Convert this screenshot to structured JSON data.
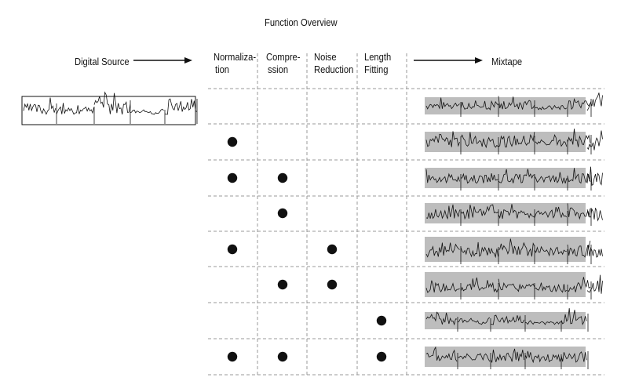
{
  "title": "Function Overview",
  "source_label": "Digital Source",
  "output_label": "Mixtape",
  "columns": [
    {
      "key": "normalization",
      "line1": "Normaliza-",
      "line2": "tion"
    },
    {
      "key": "compression",
      "line1": "Compre-",
      "line2": "ssion"
    },
    {
      "key": "noise_reduction",
      "line1": "Noise",
      "line2": "Reduction"
    },
    {
      "key": "length_fitting",
      "line1": "Length",
      "line2": "Fitting"
    }
  ],
  "rows": [
    {
      "normalization": false,
      "compression": false,
      "noise_reduction": false,
      "length_fitting": false
    },
    {
      "normalization": true,
      "compression": false,
      "noise_reduction": false,
      "length_fitting": false
    },
    {
      "normalization": true,
      "compression": true,
      "noise_reduction": false,
      "length_fitting": false
    },
    {
      "normalization": false,
      "compression": true,
      "noise_reduction": false,
      "length_fitting": false
    },
    {
      "normalization": true,
      "compression": false,
      "noise_reduction": true,
      "length_fitting": false
    },
    {
      "normalization": false,
      "compression": true,
      "noise_reduction": true,
      "length_fitting": false
    },
    {
      "normalization": false,
      "compression": false,
      "noise_reduction": false,
      "length_fitting": true
    },
    {
      "normalization": true,
      "compression": true,
      "noise_reduction": false,
      "length_fitting": true
    }
  ],
  "colors": {
    "ink": "#111111",
    "band": "#bdbdbd",
    "grid": "#9a9a9a"
  }
}
